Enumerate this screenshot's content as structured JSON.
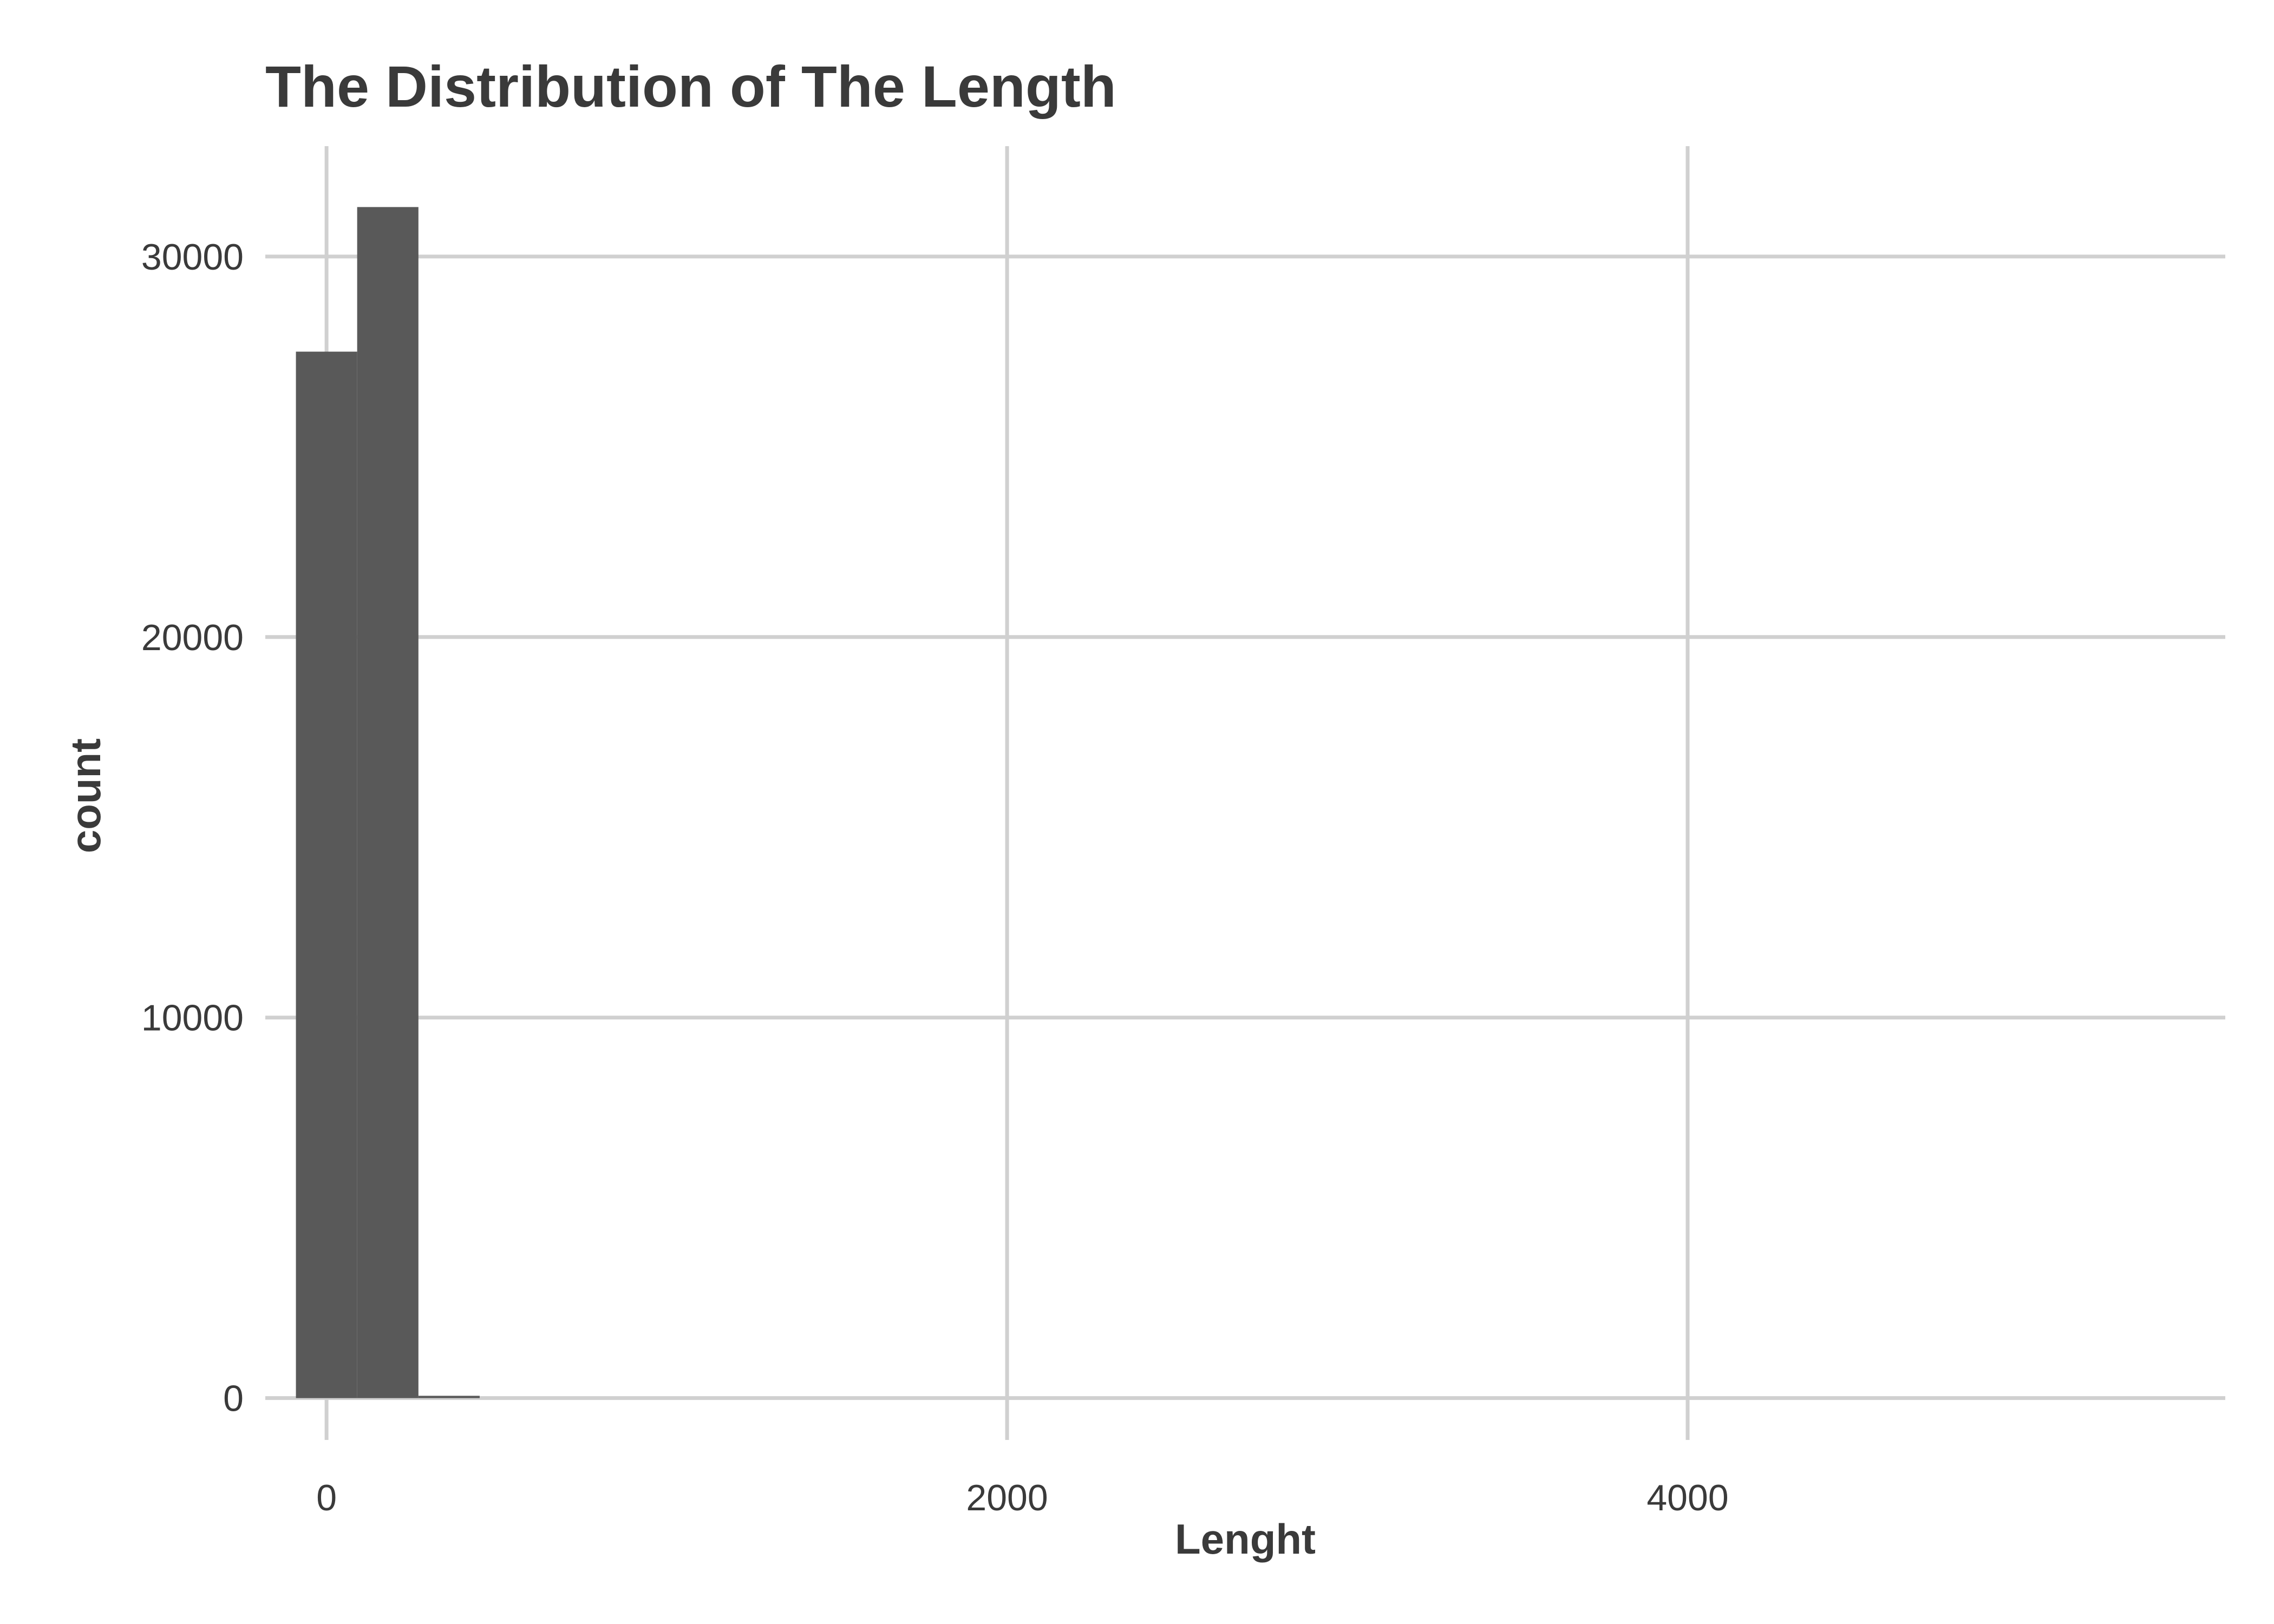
{
  "chart_data": {
    "type": "bar",
    "title": "The Distribution of The Length",
    "xlabel": "Lenght",
    "ylabel": "count",
    "xlim": [
      -180,
      5580
    ],
    "ylim": [
      -1100,
      32900
    ],
    "x_ticks": [
      0,
      2000,
      4000
    ],
    "x_tick_labels": [
      "0",
      "2000",
      "4000"
    ],
    "x_grid": [
      0,
      2000,
      4000
    ],
    "y_ticks": [
      0,
      10000,
      20000,
      30000
    ],
    "y_tick_labels": [
      "0",
      "10000",
      "20000",
      "30000"
    ],
    "y_grid": [
      0,
      10000,
      20000,
      30000
    ],
    "grid": true,
    "bar_color": "#595959",
    "grid_color": "#d0d0d0",
    "text_color": "#3a3a3a",
    "bins": [
      {
        "x0": -90,
        "x1": 90,
        "count": 27500
      },
      {
        "x0": 90,
        "x1": 270,
        "count": 31300
      },
      {
        "x0": 270,
        "x1": 450,
        "count": 60
      }
    ]
  }
}
